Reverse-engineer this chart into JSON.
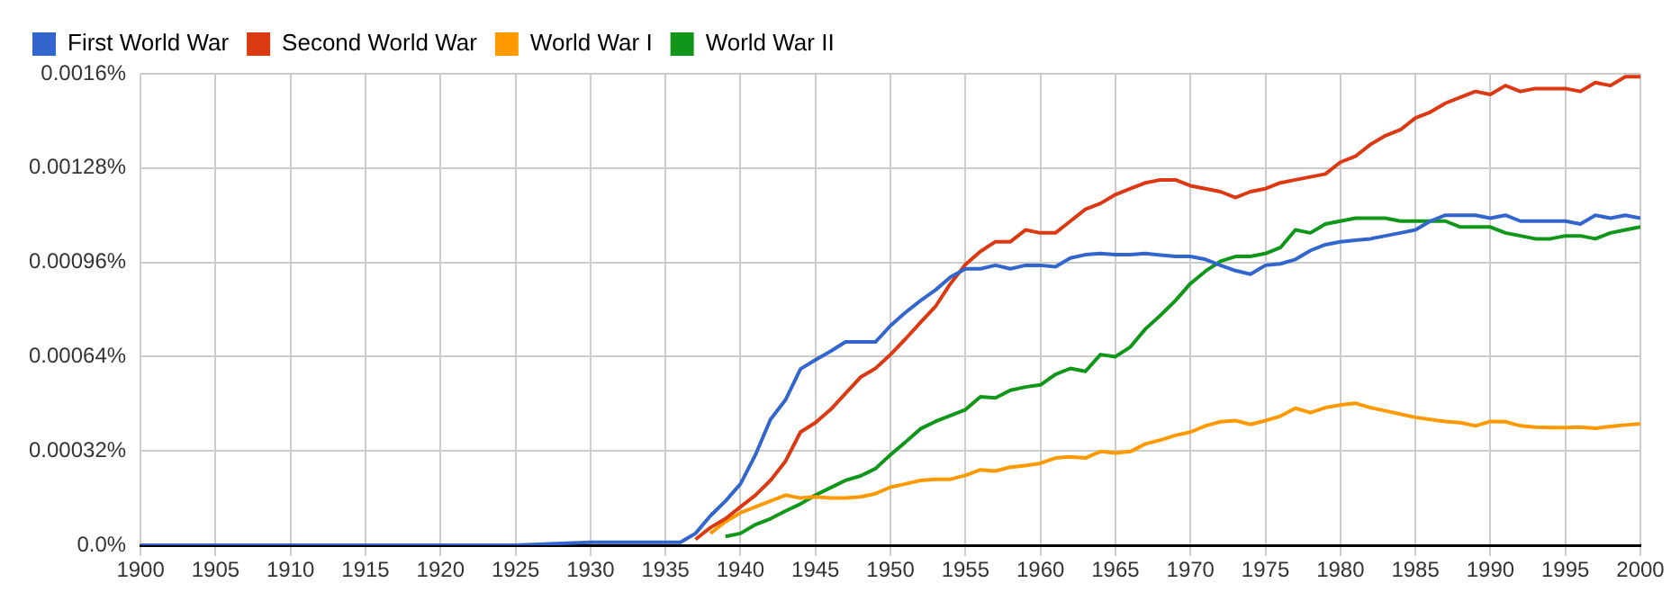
{
  "chart_data": {
    "type": "line",
    "legend": "top left",
    "grid": true,
    "marker": "none",
    "line_style": "solid",
    "x": [
      1900,
      1905,
      1910,
      1915,
      1920,
      1925,
      1930,
      1931,
      1932,
      1933,
      1934,
      1935,
      1936,
      1937,
      1938,
      1939,
      1940,
      1941,
      1942,
      1943,
      1944,
      1945,
      1946,
      1947,
      1948,
      1949,
      1950,
      1951,
      1952,
      1953,
      1954,
      1955,
      1956,
      1957,
      1958,
      1959,
      1960,
      1961,
      1962,
      1963,
      1964,
      1965,
      1966,
      1967,
      1968,
      1969,
      1970,
      1971,
      1972,
      1973,
      1974,
      1975,
      1976,
      1977,
      1978,
      1979,
      1980,
      1981,
      1982,
      1983,
      1984,
      1985,
      1986,
      1987,
      1988,
      1989,
      1990,
      1991,
      1992,
      1993,
      1994,
      1995,
      1996,
      1997,
      1998,
      1999,
      2000
    ],
    "xlim": [
      1900,
      2000
    ],
    "xticks": [
      1900,
      1905,
      1910,
      1915,
      1920,
      1925,
      1930,
      1935,
      1940,
      1945,
      1950,
      1955,
      1960,
      1965,
      1970,
      1975,
      1980,
      1985,
      1990,
      1995,
      2000
    ],
    "ylim": [
      0,
      0.0016
    ],
    "yticks": [
      {
        "value": 0,
        "label": "0.0%"
      },
      {
        "value": 0.00032,
        "label": "0.00032%"
      },
      {
        "value": 0.00064,
        "label": "0.00064%"
      },
      {
        "value": 0.00096,
        "label": "0.00096%"
      },
      {
        "value": 0.00128,
        "label": "0.00128%"
      },
      {
        "value": 0.0016,
        "label": "0.0016%"
      }
    ],
    "series": [
      {
        "name": "First World War",
        "color": "#3366cc",
        "values": [
          0,
          0,
          0,
          0,
          0,
          0,
          1e-05,
          1e-05,
          1e-05,
          1e-05,
          1e-05,
          1e-05,
          1e-05,
          4e-05,
          0.0001,
          0.00015,
          0.000208,
          0.000307,
          0.000427,
          0.000493,
          0.000598,
          0.000629,
          0.000658,
          0.00069,
          0.00069,
          0.00069,
          0.000745,
          0.00079,
          0.00083,
          0.000866,
          0.00091,
          0.000938,
          0.000938,
          0.00095,
          0.000938,
          0.00095,
          0.00095,
          0.000945,
          0.000975,
          0.000986,
          0.00099,
          0.000986,
          0.000986,
          0.00099,
          0.000985,
          0.00098,
          0.00098,
          0.00097,
          0.00095,
          0.000932,
          0.00092,
          0.00095,
          0.000955,
          0.00097,
          0.001,
          0.00102,
          0.00103,
          0.001035,
          0.00104,
          0.00105,
          0.00106,
          0.00107,
          0.0011,
          0.00112,
          0.00112,
          0.00112,
          0.00111,
          0.00112,
          0.0011,
          0.0011,
          0.0011,
          0.0011,
          0.00109,
          0.00112,
          0.00111,
          0.00112,
          0.00111
        ]
      },
      {
        "name": "Second World War",
        "color": "#dc3912",
        "values": [
          null,
          null,
          null,
          null,
          null,
          null,
          null,
          null,
          null,
          null,
          null,
          null,
          null,
          2e-05,
          6e-05,
          9e-05,
          0.00013,
          0.00017,
          0.00022,
          0.000285,
          0.000384,
          0.000416,
          0.00046,
          0.000515,
          0.00057,
          0.0006,
          0.000647,
          0.0007,
          0.000756,
          0.00081,
          0.000888,
          0.000953,
          0.000997,
          0.00103,
          0.00103,
          0.00107,
          0.00106,
          0.00106,
          0.0011,
          0.00114,
          0.00116,
          0.00119,
          0.00121,
          0.00123,
          0.00124,
          0.00124,
          0.00122,
          0.00121,
          0.0012,
          0.00118,
          0.0012,
          0.00121,
          0.00123,
          0.00124,
          0.00125,
          0.00126,
          0.0013,
          0.00132,
          0.00136,
          0.00139,
          0.00141,
          0.00145,
          0.00147,
          0.0015,
          0.00152,
          0.00154,
          0.00153,
          0.00156,
          0.00154,
          0.00155,
          0.00155,
          0.00155,
          0.00154,
          0.00157,
          0.00156,
          0.00159,
          0.00159
        ]
      },
      {
        "name": "World War I",
        "color": "#ff9900",
        "values": [
          null,
          null,
          null,
          null,
          null,
          null,
          null,
          null,
          null,
          null,
          null,
          null,
          null,
          null,
          4e-05,
          8e-05,
          0.00011,
          0.00013,
          0.00015,
          0.00017,
          0.00016,
          0.000164,
          0.00016,
          0.00016,
          0.000164,
          0.000175,
          0.000197,
          0.000208,
          0.00022,
          0.000224,
          0.000224,
          0.000237,
          0.000256,
          0.000252,
          0.000265,
          0.00027,
          0.000278,
          0.000296,
          0.0003,
          0.000296,
          0.000318,
          0.000313,
          0.000318,
          0.000344,
          0.000357,
          0.000373,
          0.000384,
          0.000405,
          0.000419,
          0.000423,
          0.00041,
          0.000423,
          0.000438,
          0.000465,
          0.00045,
          0.000467,
          0.000476,
          0.000482,
          0.000467,
          0.000456,
          0.000445,
          0.000434,
          0.000427,
          0.00042,
          0.000416,
          0.000405,
          0.00042,
          0.000419,
          0.000405,
          0.000401,
          0.000399,
          0.000399,
          0.000401,
          0.000397,
          0.000403,
          0.000408,
          0.000412
        ]
      },
      {
        "name": "World War II",
        "color": "#109618",
        "values": [
          null,
          null,
          null,
          null,
          null,
          null,
          null,
          null,
          null,
          null,
          null,
          null,
          null,
          null,
          null,
          3e-05,
          4e-05,
          7e-05,
          9e-05,
          0.000116,
          0.00014,
          0.00017,
          0.000195,
          0.00022,
          0.000235,
          0.00026,
          0.000307,
          0.00035,
          0.000395,
          0.00042,
          0.00044,
          0.00046,
          0.000504,
          0.0005,
          0.000526,
          0.000537,
          0.000544,
          0.00058,
          0.0006,
          0.00059,
          0.000647,
          0.00064,
          0.000673,
          0.000734,
          0.00078,
          0.00083,
          0.000888,
          0.00093,
          0.000964,
          0.00098,
          0.00098,
          0.00099,
          0.00101,
          0.00107,
          0.00106,
          0.00109,
          0.0011,
          0.00111,
          0.00111,
          0.00111,
          0.0011,
          0.0011,
          0.0011,
          0.0011,
          0.00108,
          0.00108,
          0.00108,
          0.00106,
          0.00105,
          0.00104,
          0.00104,
          0.00105,
          0.00105,
          0.00104,
          0.00106,
          0.00107,
          0.00108
        ]
      }
    ]
  }
}
